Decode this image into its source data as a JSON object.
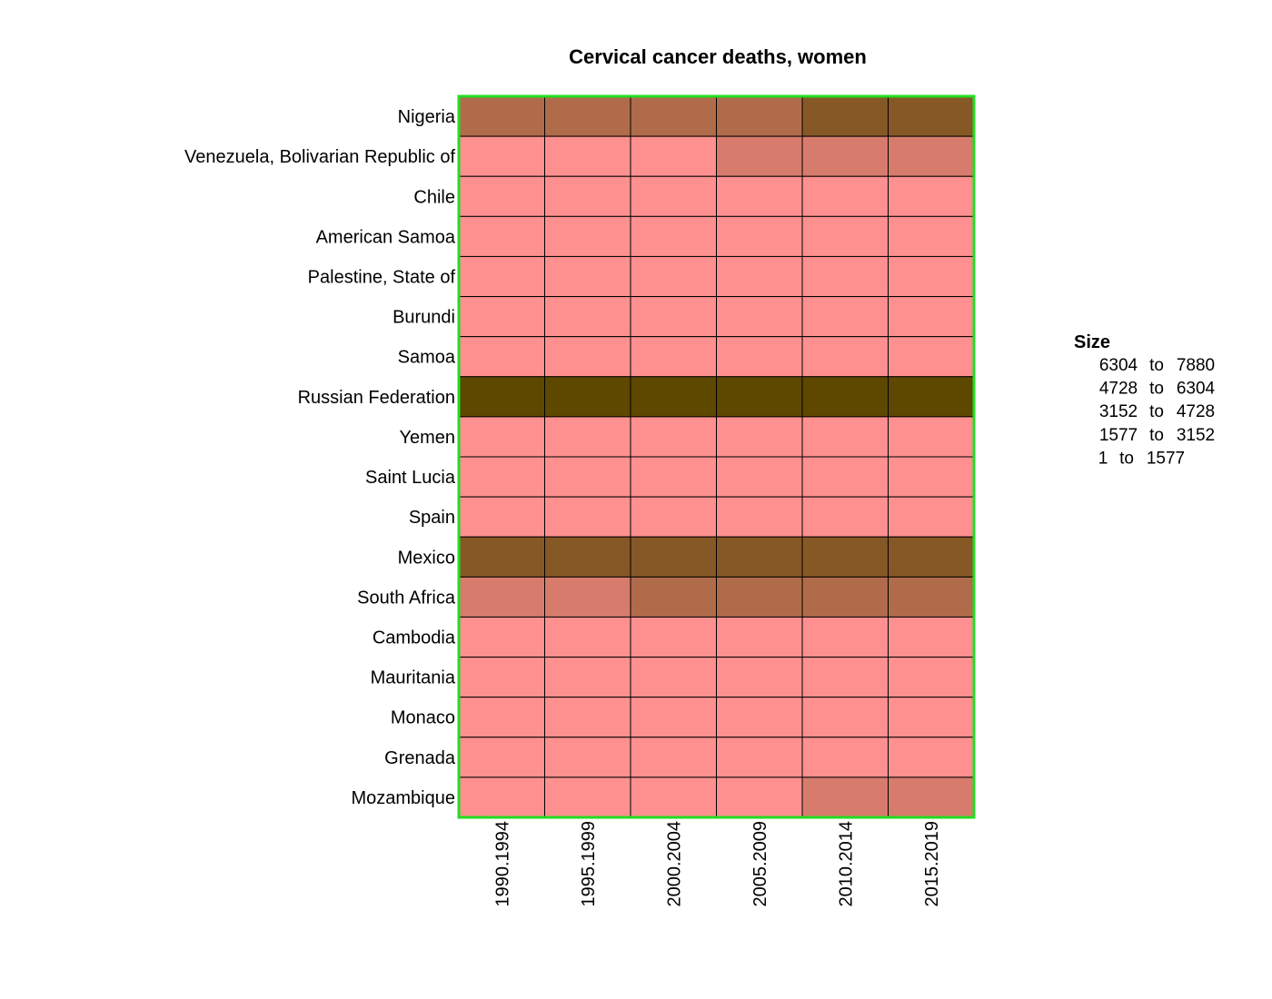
{
  "chart_data": {
    "type": "heatmap",
    "title": "Cervical cancer deaths, women",
    "xlabel": "",
    "ylabel": "",
    "columns": [
      "1990.1994",
      "1995.1999",
      "2000.2004",
      "2005.2009",
      "2010.2014",
      "2015.2019"
    ],
    "rows": [
      "Nigeria",
      "Venezuela, Bolivarian Republic of",
      "Chile",
      "American Samoa",
      "Palestine, State of",
      "Burundi",
      "Samoa",
      "Russian Federation",
      "Yemen",
      "Saint Lucia",
      "Spain",
      "Mexico",
      "South Africa",
      "Cambodia",
      "Mauritania",
      "Monaco",
      "Grenada",
      "Mozambique"
    ],
    "bins": [
      {
        "label": "1 to 1577",
        "min": 1,
        "max": 1577,
        "color": "#ff9090"
      },
      {
        "label": "1577 to 3152",
        "min": 1577,
        "max": 3152,
        "color": "#d77c6c"
      },
      {
        "label": "3152 to 4728",
        "min": 3152,
        "max": 4728,
        "color": "#b06c4a"
      },
      {
        "label": "4728 to 6304",
        "min": 4728,
        "max": 6304,
        "color": "#865826"
      },
      {
        "label": "6304 to 7880",
        "min": 6304,
        "max": 7880,
        "color": "#5e4800"
      }
    ],
    "values_bin_index": [
      [
        2,
        2,
        2,
        2,
        3,
        3
      ],
      [
        0,
        0,
        0,
        1,
        1,
        1
      ],
      [
        0,
        0,
        0,
        0,
        0,
        0
      ],
      [
        0,
        0,
        0,
        0,
        0,
        0
      ],
      [
        0,
        0,
        0,
        0,
        0,
        0
      ],
      [
        0,
        0,
        0,
        0,
        0,
        0
      ],
      [
        0,
        0,
        0,
        0,
        0,
        0
      ],
      [
        4,
        4,
        4,
        4,
        4,
        4
      ],
      [
        0,
        0,
        0,
        0,
        0,
        0
      ],
      [
        0,
        0,
        0,
        0,
        0,
        0
      ],
      [
        0,
        0,
        0,
        0,
        0,
        0
      ],
      [
        3,
        3,
        3,
        3,
        3,
        3
      ],
      [
        1,
        1,
        2,
        2,
        2,
        2
      ],
      [
        0,
        0,
        0,
        0,
        0,
        0
      ],
      [
        0,
        0,
        0,
        0,
        0,
        0
      ],
      [
        0,
        0,
        0,
        0,
        0,
        0
      ],
      [
        0,
        0,
        0,
        0,
        0,
        0
      ],
      [
        0,
        0,
        0,
        0,
        1,
        1
      ]
    ],
    "legend": {
      "title": "Size",
      "placement": "right",
      "entries": [
        {
          "from": "6304",
          "sep": "to",
          "to": "7880"
        },
        {
          "from": "4728",
          "sep": "to",
          "to": "6304"
        },
        {
          "from": "3152",
          "sep": "to",
          "to": "4728"
        },
        {
          "from": "1577",
          "sep": "to",
          "to": "3152"
        },
        {
          "from": "1",
          "sep": "to",
          "to": "1577"
        }
      ]
    },
    "border_color": "#22dd22",
    "grid_color": "#000000"
  }
}
